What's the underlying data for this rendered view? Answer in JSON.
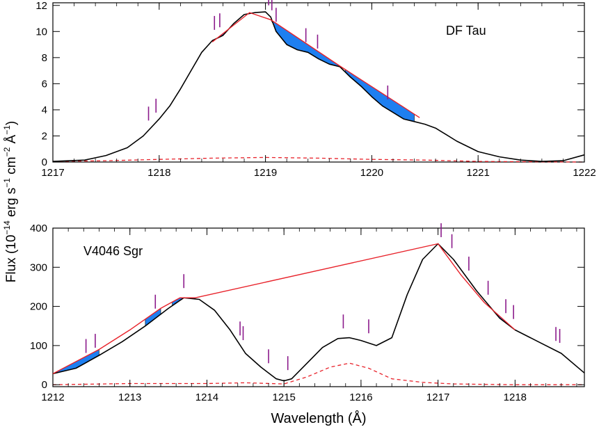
{
  "figure": {
    "ylabel": "Flux (10",
    "ylabel_exp1": "−14",
    "ylabel_mid": " erg s",
    "ylabel_exp2": "−1",
    "ylabel_mid2": " cm",
    "ylabel_exp3": "−2",
    "ylabel_mid3": " Å",
    "ylabel_exp4": "−1",
    "ylabel_end": ")",
    "colors": {
      "observed": "#000000",
      "model": "#e8222a",
      "absorption_fill": "#1e7ff0",
      "marker": "#8b1a8b",
      "error": "#e8222a"
    }
  },
  "chart_data": [
    {
      "type": "line",
      "title": "DF Tau",
      "xlabel": "",
      "ylabel": "Flux (10^-14 erg s^-1 cm^-2 Å^-1)",
      "xlim": [
        1217,
        1222
      ],
      "ylim": [
        0,
        12.2
      ],
      "xticks": [
        "1217",
        "1218",
        "1219",
        "1220",
        "1221",
        "1222"
      ],
      "yticks": [
        "0",
        "2",
        "4",
        "6",
        "8",
        "10",
        "12"
      ],
      "observed": [
        [
          1217.0,
          0.05
        ],
        [
          1217.3,
          0.15
        ],
        [
          1217.5,
          0.5
        ],
        [
          1217.7,
          1.1
        ],
        [
          1217.85,
          2.0
        ],
        [
          1218.0,
          3.3
        ],
        [
          1218.1,
          4.3
        ],
        [
          1218.2,
          5.6
        ],
        [
          1218.3,
          7.0
        ],
        [
          1218.4,
          8.4
        ],
        [
          1218.5,
          9.3
        ],
        [
          1218.6,
          9.7
        ],
        [
          1218.7,
          10.6
        ],
        [
          1218.8,
          11.3
        ],
        [
          1218.9,
          11.45
        ],
        [
          1219.0,
          11.5
        ],
        [
          1219.05,
          11.1
        ],
        [
          1219.1,
          10.0
        ],
        [
          1219.2,
          9.0
        ],
        [
          1219.3,
          8.6
        ],
        [
          1219.4,
          8.4
        ],
        [
          1219.5,
          7.9
        ],
        [
          1219.6,
          7.5
        ],
        [
          1219.7,
          7.3
        ],
        [
          1219.8,
          6.5
        ],
        [
          1219.9,
          5.8
        ],
        [
          1220.0,
          5.0
        ],
        [
          1220.1,
          4.3
        ],
        [
          1220.2,
          3.8
        ],
        [
          1220.3,
          3.3
        ],
        [
          1220.4,
          3.1
        ],
        [
          1220.5,
          2.9
        ],
        [
          1220.6,
          2.6
        ],
        [
          1220.7,
          2.1
        ],
        [
          1220.8,
          1.6
        ],
        [
          1220.9,
          1.2
        ],
        [
          1221.0,
          0.8
        ],
        [
          1221.2,
          0.4
        ],
        [
          1221.4,
          0.15
        ],
        [
          1221.6,
          0.05
        ],
        [
          1221.8,
          0.1
        ],
        [
          1222.0,
          0.55
        ]
      ],
      "model": [
        [
          1218.5,
          9.2
        ],
        [
          1218.85,
          11.45
        ],
        [
          1219.05,
          10.9
        ],
        [
          1219.7,
          7.35
        ],
        [
          1220.3,
          4.2
        ],
        [
          1220.45,
          3.4
        ]
      ],
      "error": [
        [
          1217.0,
          0.05
        ],
        [
          1217.5,
          0.1
        ],
        [
          1218.0,
          0.2
        ],
        [
          1218.5,
          0.3
        ],
        [
          1219.0,
          0.35
        ],
        [
          1219.5,
          0.3
        ],
        [
          1220.0,
          0.2
        ],
        [
          1220.5,
          0.15
        ],
        [
          1221.0,
          0.05
        ],
        [
          1221.5,
          0.02
        ],
        [
          1222.0,
          0.0
        ]
      ],
      "absorption_regions": [
        [
          1218.5,
          1218.75
        ],
        [
          1219.05,
          1219.7
        ],
        [
          1219.75,
          1220.4
        ]
      ],
      "line_markers": [
        1217.9,
        1217.97,
        1218.52,
        1218.57,
        1219.03,
        1219.06,
        1219.1,
        1219.38,
        1219.49,
        1220.15
      ]
    },
    {
      "type": "line",
      "title": "V4046 Sgr",
      "xlabel": "Wavelength (Å)",
      "ylabel": "Flux (10^-14 erg s^-1 cm^-2 Å^-1)",
      "xlim": [
        1212,
        1218.9
      ],
      "ylim": [
        -5,
        400
      ],
      "xticks": [
        "1212",
        "1213",
        "1214",
        "1215",
        "1216",
        "1217",
        "1218"
      ],
      "yticks": [
        "0",
        "100",
        "200",
        "300",
        "400"
      ],
      "observed": [
        [
          1212.0,
          28
        ],
        [
          1212.3,
          42
        ],
        [
          1212.6,
          75
        ],
        [
          1212.9,
          110
        ],
        [
          1213.2,
          150
        ],
        [
          1213.5,
          195
        ],
        [
          1213.7,
          222
        ],
        [
          1213.9,
          218
        ],
        [
          1214.1,
          190
        ],
        [
          1214.3,
          140
        ],
        [
          1214.5,
          80
        ],
        [
          1214.7,
          45
        ],
        [
          1214.9,
          15
        ],
        [
          1215.0,
          10
        ],
        [
          1215.1,
          15
        ],
        [
          1215.3,
          55
        ],
        [
          1215.5,
          95
        ],
        [
          1215.7,
          118
        ],
        [
          1215.85,
          120
        ],
        [
          1216.0,
          113
        ],
        [
          1216.2,
          100
        ],
        [
          1216.4,
          120
        ],
        [
          1216.6,
          230
        ],
        [
          1216.8,
          320
        ],
        [
          1217.0,
          360
        ],
        [
          1217.2,
          320
        ],
        [
          1217.5,
          240
        ],
        [
          1217.8,
          170
        ],
        [
          1218.0,
          140
        ],
        [
          1218.3,
          110
        ],
        [
          1218.6,
          80
        ],
        [
          1218.9,
          30
        ]
      ],
      "model": [
        [
          1212.0,
          28
        ],
        [
          1212.6,
          90
        ],
        [
          1213.0,
          140
        ],
        [
          1213.4,
          195
        ],
        [
          1213.65,
          222
        ],
        [
          1213.85,
          222
        ],
        [
          1217.0,
          360
        ],
        [
          1217.3,
          280
        ],
        [
          1217.6,
          210
        ],
        [
          1218.0,
          140
        ]
      ],
      "error": [
        [
          1212.0,
          0
        ],
        [
          1213.0,
          3
        ],
        [
          1214.0,
          3
        ],
        [
          1214.5,
          5
        ],
        [
          1215.0,
          2
        ],
        [
          1215.3,
          20
        ],
        [
          1215.6,
          45
        ],
        [
          1215.85,
          55
        ],
        [
          1216.1,
          42
        ],
        [
          1216.4,
          15
        ],
        [
          1216.8,
          6
        ],
        [
          1217.2,
          2
        ],
        [
          1218.0,
          0
        ],
        [
          1218.9,
          0
        ]
      ],
      "absorption_regions": [
        [
          1212.0,
          1212.6
        ],
        [
          1213.2,
          1213.4
        ],
        [
          1213.55,
          1213.85
        ],
        [
          1217.1,
          1217.3
        ],
        [
          1217.75,
          1218.0
        ]
      ],
      "line_markers": [
        1212.43,
        1212.55,
        1213.33,
        1213.7,
        1214.43,
        1214.47,
        1214.8,
        1215.05,
        1215.77,
        1216.1,
        1217.04,
        1217.18,
        1217.4,
        1217.65,
        1217.88,
        1217.98,
        1218.53,
        1218.58
      ]
    }
  ]
}
